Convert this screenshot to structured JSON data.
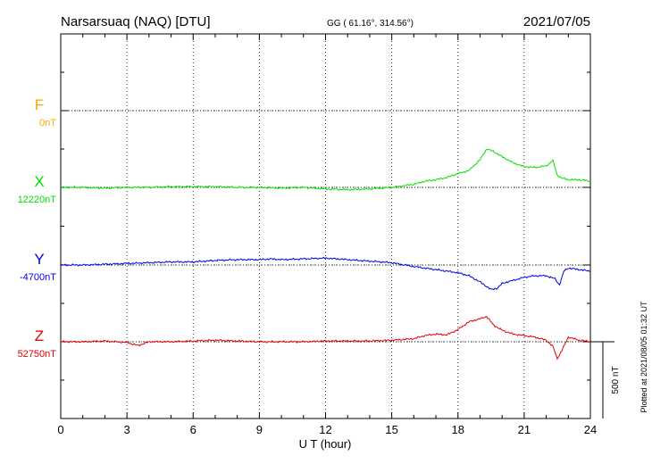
{
  "header": {
    "station": "Narsarsuaq (NAQ)  [DTU]",
    "coords": "GG ( 61.16°, 314.56°)",
    "date": "2021/07/05"
  },
  "chart_data": {
    "type": "line",
    "xlabel": "U T (hour)",
    "xlim": [
      0,
      24
    ],
    "xticks": [
      0,
      3,
      6,
      9,
      12,
      15,
      18,
      21,
      24
    ],
    "tick_labels": [
      "0",
      "3",
      "6",
      "9",
      "12",
      "15",
      "18",
      "21",
      "24"
    ],
    "y_units_per_gridline_nT": 500,
    "grid": true,
    "scale_bar_label": "500 nT",
    "plotted_note": "Plotted at 2021/08/05 01:32 UT",
    "series": [
      {
        "name": "F",
        "baseline_label": "0nT",
        "color": "#ffa500",
        "values": []
      },
      {
        "name": "X",
        "baseline_label": "12220nT",
        "color": "#00e000",
        "x": [
          0,
          1,
          2,
          3,
          4,
          5,
          6,
          7,
          8,
          9,
          10,
          11,
          12,
          13,
          14,
          15,
          16,
          16.5,
          17,
          17.5,
          18,
          18.5,
          19,
          19.3,
          19.6,
          20,
          20.5,
          21,
          21.5,
          22,
          22.3,
          22.5,
          22.7,
          23,
          23.5,
          24
        ],
        "values": [
          0,
          0,
          -5,
          0,
          0,
          5,
          5,
          5,
          0,
          0,
          -5,
          0,
          -10,
          -15,
          -10,
          0,
          20,
          40,
          50,
          65,
          90,
          110,
          180,
          250,
          235,
          200,
          160,
          135,
          130,
          140,
          175,
          80,
          60,
          50,
          50,
          40
        ]
      },
      {
        "name": "Y",
        "baseline_label": "-4700nT",
        "color": "#0000e0",
        "x": [
          0,
          1,
          2,
          3,
          4,
          5,
          6,
          7,
          8,
          9,
          9.5,
          10,
          11,
          12,
          13,
          14,
          15,
          16,
          17,
          18,
          18.5,
          19,
          19.5,
          19.8,
          20,
          20.5,
          21,
          21.5,
          22,
          22.4,
          22.6,
          22.8,
          23,
          24
        ],
        "values": [
          0,
          0,
          5,
          10,
          15,
          20,
          20,
          30,
          35,
          35,
          40,
          35,
          40,
          45,
          35,
          25,
          15,
          -10,
          -30,
          -50,
          -70,
          -110,
          -160,
          -150,
          -120,
          -100,
          -80,
          -70,
          -70,
          -90,
          -130,
          -40,
          -20,
          -40
        ]
      },
      {
        "name": "Z",
        "baseline_label": "52750nT",
        "color": "#e00000",
        "x": [
          0,
          1,
          2,
          3,
          3.5,
          4,
          5,
          6,
          7,
          8,
          9,
          10,
          11,
          12,
          13,
          14,
          15,
          16,
          16.5,
          17,
          17.5,
          18,
          18.5,
          19,
          19.3,
          19.6,
          20,
          20.5,
          21,
          21.5,
          22,
          22.3,
          22.5,
          22.7,
          23,
          23.5,
          24
        ],
        "values": [
          0,
          0,
          5,
          -5,
          -25,
          0,
          0,
          5,
          10,
          5,
          0,
          0,
          0,
          5,
          5,
          5,
          10,
          20,
          40,
          50,
          45,
          80,
          130,
          150,
          165,
          110,
          75,
          50,
          40,
          30,
          10,
          -30,
          -110,
          -60,
          30,
          10,
          0
        ]
      }
    ]
  }
}
